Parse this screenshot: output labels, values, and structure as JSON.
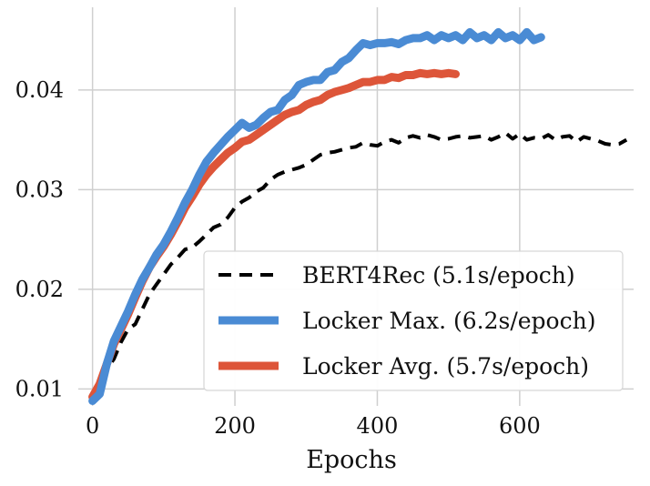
{
  "chart_data": {
    "type": "line",
    "title": "",
    "xlabel": "Epochs",
    "ylabel": "",
    "xlim": [
      -20,
      760
    ],
    "ylim": [
      0.0083,
      0.0483
    ],
    "xticks": [
      0,
      200,
      400,
      600
    ],
    "xtick_labels": [
      "0",
      "200",
      "400",
      "600"
    ],
    "yticks": [
      0.01,
      0.02,
      0.03,
      0.04
    ],
    "ytick_labels": [
      "0.01",
      "0.02",
      "0.03",
      "0.04"
    ],
    "grid": true,
    "legend_position": "lower-right",
    "series": [
      {
        "name": "BERT4Rec (5.1s/epoch)",
        "color": "#000000",
        "style": "dashed",
        "x": [
          0,
          10,
          20,
          30,
          40,
          50,
          60,
          70,
          80,
          90,
          100,
          110,
          120,
          130,
          140,
          150,
          160,
          170,
          180,
          190,
          200,
          210,
          220,
          230,
          240,
          250,
          260,
          270,
          280,
          290,
          300,
          310,
          320,
          330,
          340,
          350,
          360,
          370,
          380,
          390,
          400,
          410,
          420,
          430,
          440,
          450,
          460,
          470,
          480,
          490,
          500,
          510,
          520,
          530,
          540,
          550,
          560,
          570,
          580,
          590,
          600,
          610,
          620,
          630,
          640,
          650,
          660,
          670,
          680,
          690,
          700,
          710,
          720,
          730,
          740,
          750
        ],
        "y": [
          0.009,
          0.0105,
          0.012,
          0.013,
          0.0147,
          0.016,
          0.0165,
          0.018,
          0.0195,
          0.0205,
          0.0215,
          0.0225,
          0.0232,
          0.024,
          0.0242,
          0.0248,
          0.0255,
          0.0262,
          0.0265,
          0.0272,
          0.0282,
          0.0288,
          0.0292,
          0.0298,
          0.0302,
          0.031,
          0.0315,
          0.0318,
          0.032,
          0.0322,
          0.0325,
          0.033,
          0.0335,
          0.0337,
          0.0338,
          0.034,
          0.0342,
          0.0343,
          0.0347,
          0.0345,
          0.0344,
          0.0348,
          0.035,
          0.0347,
          0.0352,
          0.0354,
          0.0352,
          0.0355,
          0.0353,
          0.035,
          0.0351,
          0.0353,
          0.0354,
          0.0352,
          0.0353,
          0.0354,
          0.035,
          0.0353,
          0.0357,
          0.0351,
          0.0356,
          0.035,
          0.0352,
          0.0351,
          0.0355,
          0.035,
          0.0353,
          0.0354,
          0.0348,
          0.0353,
          0.0351,
          0.0349,
          0.0346,
          0.0345,
          0.0346,
          0.035
        ]
      },
      {
        "name": "Locker Max. (6.2s/epoch)",
        "color": "#4a8bd4",
        "style": "solid",
        "x": [
          0,
          10,
          20,
          30,
          40,
          50,
          60,
          70,
          80,
          90,
          100,
          110,
          120,
          130,
          140,
          150,
          160,
          170,
          180,
          190,
          200,
          210,
          220,
          230,
          240,
          250,
          260,
          270,
          280,
          290,
          300,
          310,
          320,
          330,
          340,
          350,
          360,
          370,
          380,
          390,
          400,
          410,
          420,
          430,
          440,
          450,
          460,
          470,
          480,
          490,
          500,
          510,
          520,
          530,
          540,
          550,
          560,
          570,
          580,
          590,
          600,
          610,
          620,
          630
        ],
        "y": [
          0.0088,
          0.0095,
          0.0125,
          0.0148,
          0.0163,
          0.0178,
          0.0195,
          0.021,
          0.0222,
          0.0235,
          0.0245,
          0.0258,
          0.0272,
          0.0287,
          0.03,
          0.0315,
          0.0328,
          0.0337,
          0.0345,
          0.0353,
          0.036,
          0.0367,
          0.0362,
          0.0365,
          0.0372,
          0.0378,
          0.038,
          0.039,
          0.0395,
          0.0405,
          0.0408,
          0.041,
          0.041,
          0.0418,
          0.042,
          0.0428,
          0.0432,
          0.044,
          0.0447,
          0.0445,
          0.0447,
          0.0447,
          0.0448,
          0.0446,
          0.045,
          0.0452,
          0.0452,
          0.0455,
          0.045,
          0.0455,
          0.0452,
          0.0455,
          0.045,
          0.0458,
          0.0452,
          0.0455,
          0.045,
          0.0458,
          0.0452,
          0.0455,
          0.045,
          0.0458,
          0.045,
          0.0453
        ]
      },
      {
        "name": "Locker Avg. (5.7s/epoch)",
        "color": "#dd5539",
        "style": "solid",
        "x": [
          0,
          10,
          20,
          30,
          40,
          50,
          60,
          70,
          80,
          90,
          100,
          110,
          120,
          130,
          140,
          150,
          160,
          170,
          180,
          190,
          200,
          210,
          220,
          230,
          240,
          250,
          260,
          270,
          280,
          290,
          300,
          310,
          320,
          330,
          340,
          350,
          360,
          370,
          380,
          390,
          400,
          410,
          420,
          430,
          440,
          450,
          460,
          470,
          480,
          490,
          500,
          510
        ],
        "y": [
          0.0092,
          0.0105,
          0.0125,
          0.0145,
          0.016,
          0.0175,
          0.0192,
          0.0208,
          0.0222,
          0.0233,
          0.0243,
          0.0255,
          0.0268,
          0.0282,
          0.0293,
          0.0305,
          0.0315,
          0.0323,
          0.033,
          0.0337,
          0.0342,
          0.0348,
          0.035,
          0.0355,
          0.036,
          0.0365,
          0.037,
          0.0375,
          0.0378,
          0.038,
          0.0385,
          0.0388,
          0.039,
          0.0395,
          0.0398,
          0.04,
          0.0402,
          0.0405,
          0.0408,
          0.0408,
          0.041,
          0.041,
          0.0413,
          0.0412,
          0.0415,
          0.0415,
          0.0417,
          0.0416,
          0.0417,
          0.0416,
          0.0417,
          0.0416
        ]
      }
    ]
  }
}
